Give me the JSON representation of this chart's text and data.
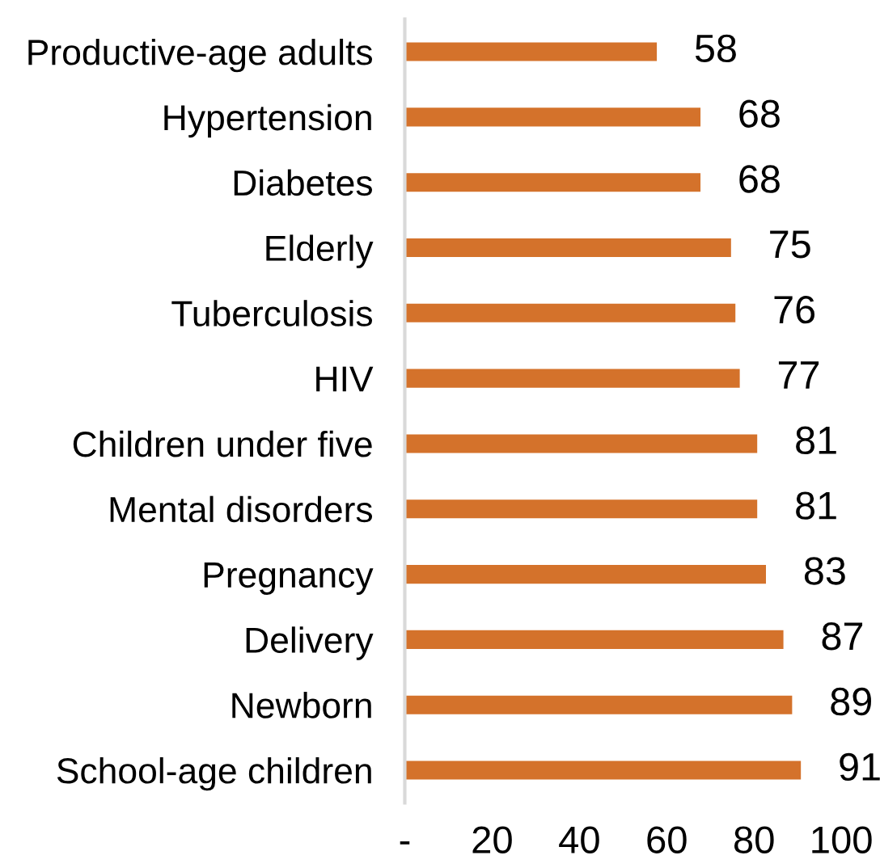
{
  "chart_data": {
    "type": "bar",
    "orientation": "horizontal",
    "categories": [
      "Productive-age adults",
      "Hypertension",
      "Diabetes",
      "Elderly",
      "Tuberculosis",
      "HIV",
      "Children under five",
      "Mental disorders",
      "Pregnancy",
      "Delivery",
      "Newborn",
      "School-age children"
    ],
    "values": [
      58,
      68,
      68,
      75,
      76,
      77,
      81,
      81,
      83,
      87,
      89,
      91
    ],
    "color": "#d4722b",
    "xlim": [
      0,
      100
    ],
    "xticks": [
      {
        "value": 0,
        "label": "-"
      },
      20,
      40,
      60,
      80,
      100
    ],
    "data_labels": true
  }
}
